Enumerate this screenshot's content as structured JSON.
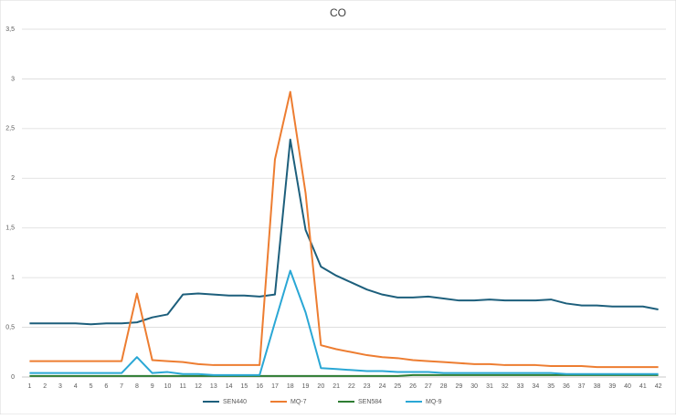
{
  "chart_data": {
    "type": "line",
    "title": "CO",
    "categories": [
      "1",
      "2",
      "3",
      "4",
      "5",
      "6",
      "7",
      "8",
      "9",
      "10",
      "11",
      "12",
      "13",
      "14",
      "15",
      "16",
      "17",
      "18",
      "19",
      "20",
      "21",
      "22",
      "23",
      "24",
      "25",
      "26",
      "27",
      "28",
      "29",
      "30",
      "31",
      "32",
      "33",
      "34",
      "35",
      "36",
      "37",
      "38",
      "39",
      "40",
      "41",
      "42"
    ],
    "series": [
      {
        "name": "SEN440",
        "color": "#1d5f7c",
        "values": [
          0.54,
          0.54,
          0.54,
          0.54,
          0.53,
          0.54,
          0.54,
          0.55,
          0.6,
          0.63,
          0.83,
          0.84,
          0.83,
          0.82,
          0.82,
          0.81,
          0.83,
          2.39,
          1.48,
          1.11,
          1.02,
          0.95,
          0.88,
          0.83,
          0.8,
          0.8,
          0.81,
          0.79,
          0.77,
          0.77,
          0.78,
          0.77,
          0.77,
          0.77,
          0.78,
          0.74,
          0.72,
          0.72,
          0.71,
          0.71,
          0.71,
          0.68
        ]
      },
      {
        "name": "MQ-7",
        "color": "#ed7d31",
        "values": [
          0.16,
          0.16,
          0.16,
          0.16,
          0.16,
          0.16,
          0.16,
          0.84,
          0.17,
          0.16,
          0.15,
          0.13,
          0.12,
          0.12,
          0.12,
          0.12,
          2.19,
          2.87,
          1.85,
          0.32,
          0.28,
          0.25,
          0.22,
          0.2,
          0.19,
          0.17,
          0.16,
          0.15,
          0.14,
          0.13,
          0.13,
          0.12,
          0.12,
          0.12,
          0.11,
          0.11,
          0.11,
          0.1,
          0.1,
          0.1,
          0.1,
          0.1
        ]
      },
      {
        "name": "SEN584",
        "color": "#2e7d32",
        "values": [
          0.01,
          0.01,
          0.01,
          0.01,
          0.01,
          0.01,
          0.01,
          0.01,
          0.01,
          0.01,
          0.01,
          0.01,
          0.01,
          0.01,
          0.01,
          0.01,
          0.01,
          0.01,
          0.01,
          0.01,
          0.01,
          0.01,
          0.01,
          0.01,
          0.01,
          0.02,
          0.02,
          0.02,
          0.02,
          0.02,
          0.02,
          0.02,
          0.02,
          0.02,
          0.02,
          0.02,
          0.02,
          0.02,
          0.02,
          0.02,
          0.02,
          0.02
        ]
      },
      {
        "name": "MQ-9",
        "color": "#2aa7d5",
        "values": [
          0.04,
          0.04,
          0.04,
          0.04,
          0.04,
          0.04,
          0.04,
          0.2,
          0.04,
          0.05,
          0.03,
          0.03,
          0.02,
          0.02,
          0.02,
          0.02,
          0.55,
          1.07,
          0.65,
          0.09,
          0.08,
          0.07,
          0.06,
          0.06,
          0.05,
          0.05,
          0.05,
          0.04,
          0.04,
          0.04,
          0.04,
          0.04,
          0.04,
          0.04,
          0.04,
          0.03,
          0.03,
          0.03,
          0.03,
          0.03,
          0.03,
          0.03
        ]
      }
    ],
    "ylim": [
      0,
      3.5
    ],
    "yticks": [
      0,
      {
        "value": 0.5,
        "label": "0,5"
      },
      1,
      {
        "value": 1.5,
        "label": "1,5"
      },
      2,
      {
        "value": 2.5,
        "label": "2,5"
      },
      3,
      {
        "value": 3.5,
        "label": "3,5"
      }
    ],
    "grid": true,
    "legend": "bottom"
  }
}
